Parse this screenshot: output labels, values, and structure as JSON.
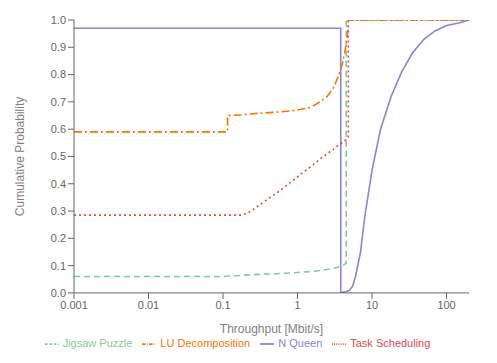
{
  "chart_data": {
    "type": "line",
    "title": "",
    "xlabel": "Throughput [Mbit/s]",
    "ylabel": "Cumulative Probability",
    "log": "x",
    "grid": false,
    "legend": "bottom",
    "xlim": [
      0.001,
      200
    ],
    "ylim": [
      0,
      1.0
    ],
    "xticks": [
      0.001,
      0.01,
      0.1,
      1,
      10,
      100
    ],
    "yticks": [
      {
        "value": 0,
        "label": "0.0"
      },
      0.1,
      0.2,
      0.3,
      0.4,
      0.5,
      0.6,
      0.7,
      0.8,
      0.9,
      {
        "value": 1,
        "label": "1.0"
      }
    ],
    "series": [
      {
        "name": "N Queen",
        "color": "#8884d8",
        "line_style": "solid",
        "x": [
          0.001,
          3.8,
          3.8,
          4.0,
          4.5,
          5.0,
          5.5,
          6.0,
          7.0,
          8.0,
          10.0,
          13.0,
          18.0,
          25.0,
          35.0,
          50.0,
          70.0,
          100.0,
          150.0,
          200.0
        ],
        "values": [
          0.97,
          0.97,
          0.001,
          0.002,
          0.004,
          0.01,
          0.025,
          0.06,
          0.15,
          0.28,
          0.45,
          0.6,
          0.72,
          0.81,
          0.88,
          0.93,
          0.96,
          0.98,
          0.99,
          1.0
        ]
      },
      {
        "name": "Jigsaw Puzzle",
        "color": "#82ca9d",
        "line_style": "dashed",
        "x": [
          0.001,
          0.1,
          0.12,
          0.15,
          0.2,
          0.3,
          0.5,
          0.7,
          1.0,
          1.5,
          2.0,
          2.5,
          3.0,
          3.5,
          4.0,
          4.3,
          4.5,
          4.5,
          200.0
        ],
        "values": [
          0.06,
          0.06,
          0.062,
          0.063,
          0.065,
          0.068,
          0.07,
          0.072,
          0.075,
          0.078,
          0.082,
          0.086,
          0.09,
          0.095,
          0.1,
          0.105,
          0.11,
          1.0,
          1.0
        ]
      },
      {
        "name": "LU Decomposition",
        "color": "#ff7300",
        "line_style": "dashdot",
        "x": [
          0.001,
          0.115,
          0.115,
          0.18,
          0.22,
          0.3,
          0.5,
          0.8,
          1.0,
          1.5,
          2.0,
          2.5,
          3.0,
          3.5,
          4.0,
          4.3,
          4.8,
          4.8,
          200.0
        ],
        "values": [
          0.59,
          0.59,
          0.65,
          0.652,
          0.655,
          0.658,
          0.662,
          0.667,
          0.67,
          0.68,
          0.7,
          0.72,
          0.75,
          0.79,
          0.84,
          0.88,
          0.97,
          1.0,
          1.0
        ]
      },
      {
        "name": "Task Scheduling",
        "color": "#e5484d",
        "line_style": "dotted",
        "x": [
          0.001,
          0.18,
          0.22,
          0.26,
          0.3,
          0.36,
          0.42,
          0.5,
          0.58,
          0.68,
          0.8,
          0.95,
          1.1,
          1.3,
          1.55,
          1.8,
          2.1,
          2.5,
          3.0,
          3.5,
          4.2,
          4.8,
          4.8,
          200.0
        ],
        "values": [
          0.285,
          0.285,
          0.295,
          0.308,
          0.32,
          0.335,
          0.348,
          0.362,
          0.375,
          0.39,
          0.405,
          0.42,
          0.435,
          0.45,
          0.465,
          0.48,
          0.495,
          0.51,
          0.525,
          0.54,
          0.555,
          0.57,
          1.0,
          1.0
        ]
      }
    ]
  }
}
